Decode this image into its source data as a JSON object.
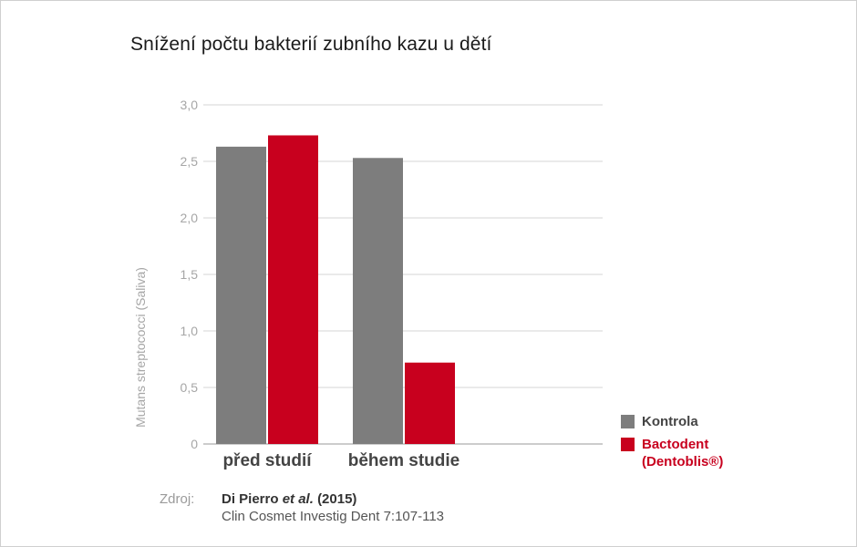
{
  "chart_data": {
    "type": "bar",
    "title": "Snížení počtu bakterií zubního kazu u dětí",
    "ylabel": "Mutans streptococci (Saliva)",
    "xlabel": "",
    "categories": [
      "před studií",
      "během studie"
    ],
    "series": [
      {
        "name": "Kontrola",
        "color": "#7d7d7d",
        "values": [
          2.63,
          2.53
        ]
      },
      {
        "name": "Bactodent (Dentoblis®)",
        "color": "#c8001e",
        "values": [
          2.73,
          0.72
        ]
      }
    ],
    "ylim": [
      0,
      3.0
    ],
    "yticks": [
      "0",
      "0,5",
      "1,0",
      "1,5",
      "2,0",
      "2,5",
      "3,0"
    ],
    "grid": true,
    "legend_position": "bottom-right"
  },
  "legend": {
    "items": [
      {
        "label": "Kontrola",
        "color": "#7d7d7d"
      },
      {
        "label_line1": "Bactodent",
        "label_line2": "(Dentoblis®)",
        "color": "#c8001e"
      }
    ]
  },
  "source": {
    "label": "Zdroj:",
    "authors": "Di Pierro",
    "etal": "et al.",
    "year": "(2015)",
    "journal": "Clin Cosmet Investig Dent 7:107-113"
  }
}
